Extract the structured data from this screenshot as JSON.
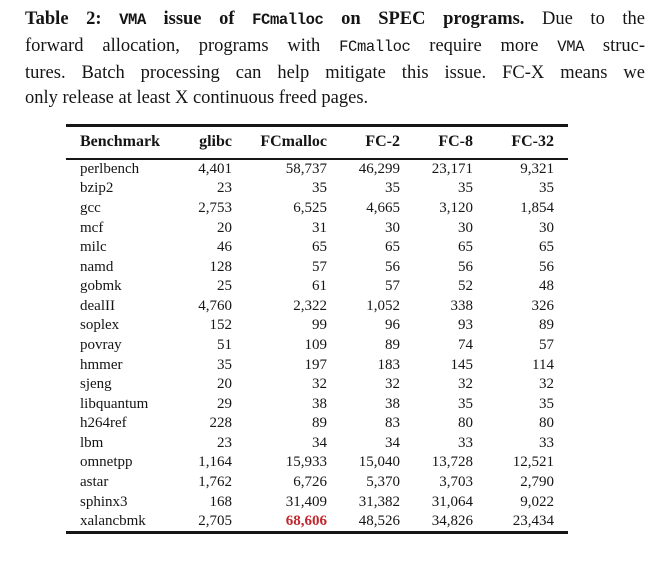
{
  "caption": {
    "line1": {
      "s0": "Table 2: ",
      "s1": "VMA",
      "s2": " issue of ",
      "s3": "FCmalloc",
      "s4": " on SPEC programs.",
      "s5": " Due to the"
    },
    "line2": {
      "s0": "forward allocation, programs with ",
      "s1": "FCmalloc",
      "s2": " require more ",
      "s3": "VMA",
      "s4": " struc-"
    },
    "line3": "tures. Batch processing can help mitigate this issue. FC-X means we",
    "line4": "only release at least X continuous freed pages."
  },
  "table": {
    "columns": [
      "Benchmark",
      "glibc",
      "FCmalloc",
      "FC-2",
      "FC-8",
      "FC-32"
    ],
    "rows": [
      {
        "benchmark": "perlbench",
        "values": [
          "4,401",
          "58,737",
          "46,299",
          "23,171",
          "9,321"
        ]
      },
      {
        "benchmark": "bzip2",
        "values": [
          "23",
          "35",
          "35",
          "35",
          "35"
        ]
      },
      {
        "benchmark": "gcc",
        "values": [
          "2,753",
          "6,525",
          "4,665",
          "3,120",
          "1,854"
        ]
      },
      {
        "benchmark": "mcf",
        "values": [
          "20",
          "31",
          "30",
          "30",
          "30"
        ]
      },
      {
        "benchmark": "milc",
        "values": [
          "46",
          "65",
          "65",
          "65",
          "65"
        ]
      },
      {
        "benchmark": "namd",
        "values": [
          "128",
          "57",
          "56",
          "56",
          "56"
        ]
      },
      {
        "benchmark": "gobmk",
        "values": [
          "25",
          "61",
          "57",
          "52",
          "48"
        ]
      },
      {
        "benchmark": "dealII",
        "values": [
          "4,760",
          "2,322",
          "1,052",
          "338",
          "326"
        ]
      },
      {
        "benchmark": "soplex",
        "values": [
          "152",
          "99",
          "96",
          "93",
          "89"
        ]
      },
      {
        "benchmark": "povray",
        "values": [
          "51",
          "109",
          "89",
          "74",
          "57"
        ]
      },
      {
        "benchmark": "hmmer",
        "values": [
          "35",
          "197",
          "183",
          "145",
          "114"
        ]
      },
      {
        "benchmark": "sjeng",
        "values": [
          "20",
          "32",
          "32",
          "32",
          "32"
        ]
      },
      {
        "benchmark": "libquantum",
        "values": [
          "29",
          "38",
          "38",
          "35",
          "35"
        ]
      },
      {
        "benchmark": "h264ref",
        "values": [
          "228",
          "89",
          "83",
          "80",
          "80"
        ]
      },
      {
        "benchmark": "lbm",
        "values": [
          "23",
          "34",
          "34",
          "33",
          "33"
        ]
      },
      {
        "benchmark": "omnetpp",
        "values": [
          "1,164",
          "15,933",
          "15,040",
          "13,728",
          "12,521"
        ]
      },
      {
        "benchmark": "astar",
        "values": [
          "1,762",
          "6,726",
          "5,370",
          "3,703",
          "2,790"
        ]
      },
      {
        "benchmark": "sphinx3",
        "values": [
          "168",
          "31,409",
          "31,382",
          "31,064",
          "9,022"
        ]
      },
      {
        "benchmark": "xalancbmk",
        "values": [
          "2,705",
          "68,606",
          "48,526",
          "34,826",
          "23,434"
        ]
      }
    ],
    "highlight": {
      "row": "xalancbmk",
      "column": "FCmalloc",
      "value": "68,606",
      "color": "#c2272d"
    }
  }
}
